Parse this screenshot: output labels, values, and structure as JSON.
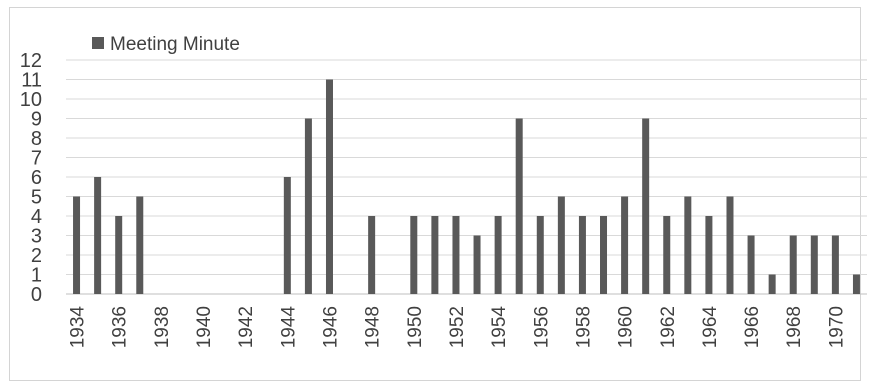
{
  "chart_data": {
    "type": "bar",
    "title": "",
    "xlabel": "",
    "ylabel": "",
    "legend_position": "top-left",
    "grid": true,
    "ylim": [
      0,
      12
    ],
    "y_ticks": [
      0,
      1,
      2,
      3,
      4,
      5,
      6,
      7,
      8,
      9,
      10,
      11,
      12
    ],
    "x_range": [
      1934,
      1971
    ],
    "x_tick_labels": [
      "1934",
      "1936",
      "1938",
      "1940",
      "1942",
      "1944",
      "1946",
      "1948",
      "1950",
      "1952",
      "1954",
      "1956",
      "1958",
      "1960",
      "1962",
      "1964",
      "1966",
      "1968",
      "1970"
    ],
    "series": [
      {
        "name": "Meeting Minute",
        "color": "#595959",
        "x": [
          1934,
          1935,
          1936,
          1937,
          1944,
          1945,
          1946,
          1948,
          1950,
          1951,
          1952,
          1953,
          1954,
          1955,
          1956,
          1957,
          1958,
          1959,
          1960,
          1961,
          1962,
          1963,
          1964,
          1965,
          1966,
          1967,
          1968,
          1969,
          1970,
          1971
        ],
        "values": [
          5,
          6,
          4,
          5,
          6,
          9,
          11,
          4,
          4,
          4,
          4,
          3,
          4,
          9,
          4,
          5,
          4,
          4,
          5,
          9,
          4,
          5,
          4,
          5,
          3,
          1,
          3,
          3,
          3,
          1
        ]
      }
    ]
  }
}
